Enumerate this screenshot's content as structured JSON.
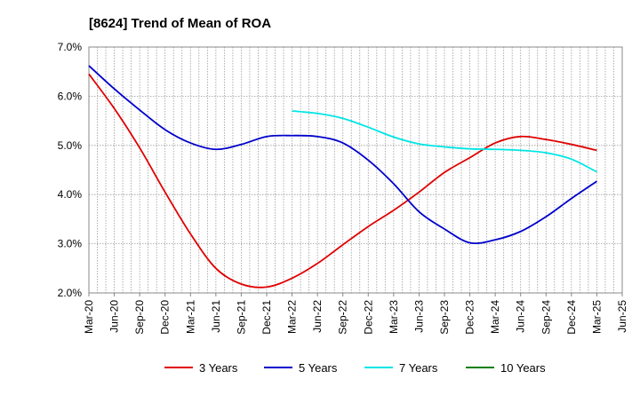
{
  "chart_data": {
    "type": "line",
    "title": "[8624]  Trend of Mean of ROA",
    "xlabel": "",
    "ylabel": "",
    "categories": [
      "Mar-20",
      "Jun-20",
      "Sep-20",
      "Dec-20",
      "Mar-21",
      "Jun-21",
      "Sep-21",
      "Dec-21",
      "Mar-22",
      "Jun-22",
      "Sep-22",
      "Dec-22",
      "Mar-23",
      "Jun-23",
      "Sep-23",
      "Dec-23",
      "Mar-24",
      "Jun-24",
      "Sep-24",
      "Dec-24",
      "Mar-25",
      "Jun-25"
    ],
    "y_ticks": [
      "2.0%",
      "3.0%",
      "4.0%",
      "5.0%",
      "6.0%",
      "7.0%"
    ],
    "ylim": [
      2.0,
      7.0
    ],
    "grid": true,
    "legend_position": "bottom",
    "series": [
      {
        "name": "3 Years",
        "color": "#e00000",
        "values": [
          6.45,
          5.75,
          4.95,
          4.05,
          3.2,
          2.5,
          2.18,
          2.12,
          2.3,
          2.6,
          2.98,
          3.35,
          3.68,
          4.05,
          4.45,
          4.75,
          5.05,
          5.18,
          5.12,
          5.02,
          4.9,
          null
        ]
      },
      {
        "name": "5 Years",
        "color": "#0000cc",
        "values": [
          6.62,
          6.15,
          5.72,
          5.32,
          5.05,
          4.92,
          5.02,
          5.18,
          5.2,
          5.18,
          5.05,
          4.7,
          4.22,
          3.65,
          3.3,
          3.02,
          3.08,
          3.25,
          3.55,
          3.92,
          4.27,
          null
        ]
      },
      {
        "name": "7 Years",
        "color": "#00e5e5",
        "values": [
          null,
          null,
          null,
          null,
          null,
          null,
          null,
          null,
          5.7,
          5.65,
          5.55,
          5.37,
          5.17,
          5.03,
          4.97,
          4.93,
          4.92,
          4.9,
          4.85,
          4.72,
          4.46,
          null
        ]
      },
      {
        "name": "10 Years",
        "color": "#008000",
        "values": [
          null,
          null,
          null,
          null,
          null,
          null,
          null,
          null,
          null,
          null,
          null,
          null,
          null,
          null,
          null,
          null,
          null,
          null,
          null,
          null,
          null,
          null
        ]
      }
    ]
  }
}
